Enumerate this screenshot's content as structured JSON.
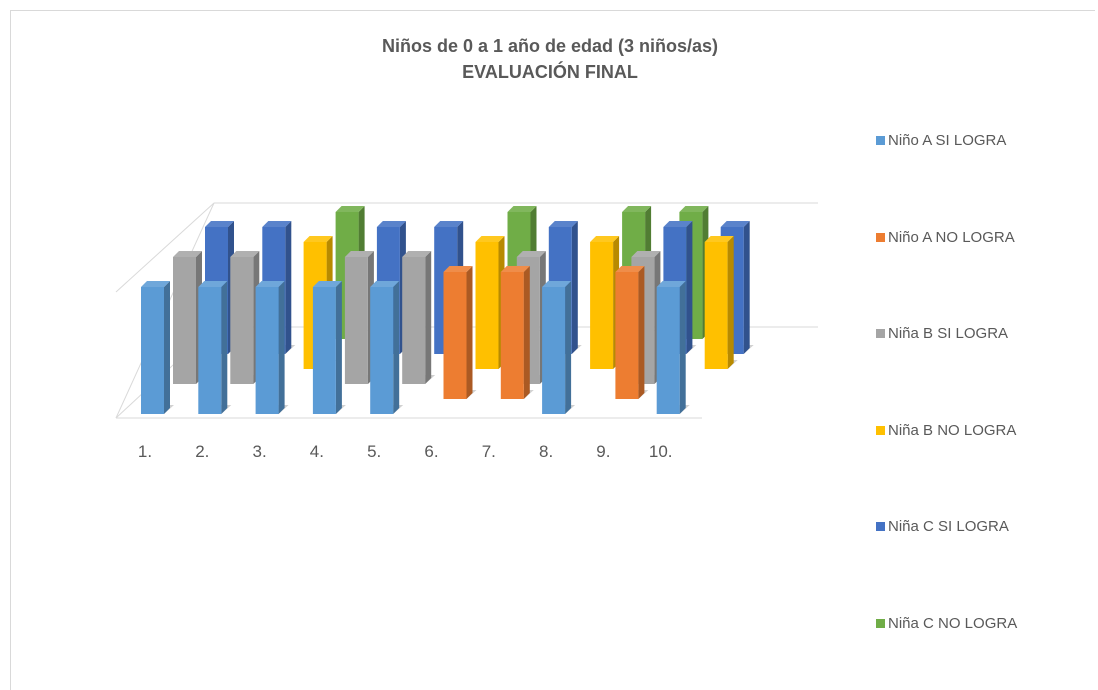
{
  "chart_data": {
    "type": "bar",
    "title": "Niños de 0 a 1 año de edad (3 niños/as)",
    "subtitle": "EVALUACIÓN FINAL",
    "categories": [
      "1.",
      "2.",
      "3.",
      "4.",
      "5.",
      "6.",
      "7.",
      "8.",
      "9.",
      "10."
    ],
    "series": [
      {
        "name": "Niño A SI LOGRA",
        "color": "#5b9bd5",
        "values": [
          1,
          1,
          1,
          1,
          1,
          0,
          0,
          1,
          0,
          1
        ]
      },
      {
        "name": "Niño A NO LOGRA",
        "color": "#ed7d31",
        "values": [
          0,
          0,
          0,
          0,
          0,
          1,
          1,
          0,
          1,
          0
        ]
      },
      {
        "name": "Niña B SI LOGRA",
        "color": "#a5a5a5",
        "values": [
          1,
          1,
          0,
          1,
          1,
          0,
          1,
          0,
          1,
          0
        ]
      },
      {
        "name": "Niña B NO LOGRA",
        "color": "#ffc000",
        "values": [
          0,
          0,
          1,
          0,
          0,
          1,
          0,
          1,
          0,
          1
        ]
      },
      {
        "name": "Niña C SI LOGRA",
        "color": "#4472c4",
        "values": [
          1,
          1,
          0,
          1,
          1,
          0,
          1,
          0,
          1,
          1
        ]
      },
      {
        "name": "Niña C NO LOGRA",
        "color": "#70ad47",
        "values": [
          0,
          0,
          1,
          0,
          0,
          1,
          0,
          1,
          1,
          0
        ]
      }
    ],
    "legend_position": "right",
    "grid": false,
    "projection": "3d-column"
  }
}
